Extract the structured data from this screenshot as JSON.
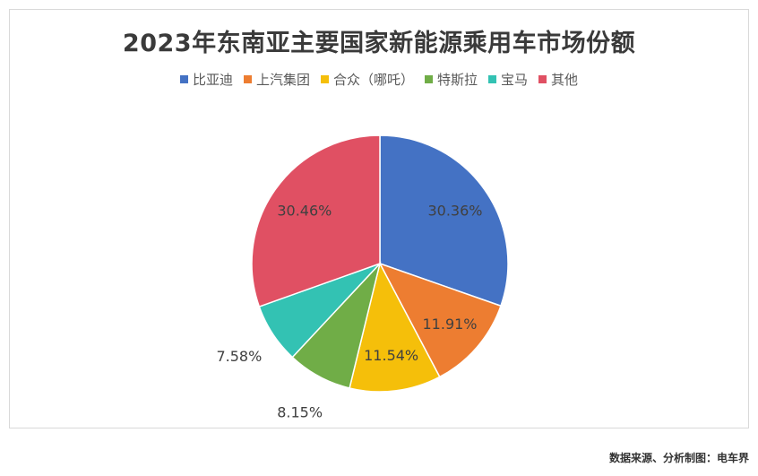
{
  "chart_data": {
    "type": "pie",
    "title": "2023年东南亚主要国家新能源乘用车市场份额",
    "legend_position": "top",
    "categories": [
      "比亚迪",
      "上汽集团",
      "合众（哪吒）",
      "特斯拉",
      "宝马",
      "其他"
    ],
    "values": [
      30.36,
      11.91,
      11.54,
      8.15,
      7.58,
      30.46
    ],
    "labels": [
      "30.36%",
      "11.91%",
      "11.54%",
      "8.15%",
      "7.58%",
      "30.46%"
    ],
    "colors": [
      "#4472C4",
      "#ED7D31",
      "#F5BF0A",
      "#70AD47",
      "#33C2B3",
      "#E05063"
    ]
  },
  "source_note": "数据来源、分析制图：电车界"
}
